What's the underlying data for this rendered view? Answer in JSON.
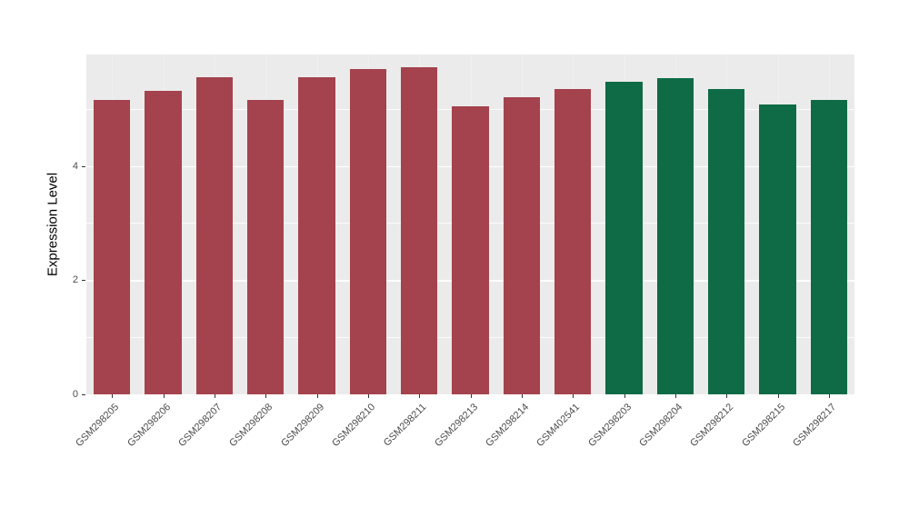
{
  "chart_data": {
    "type": "bar",
    "title": "",
    "xlabel": "",
    "ylabel": "Expression Level",
    "ylim": [
      0,
      5.95
    ],
    "yticks": [
      0,
      2,
      4
    ],
    "yticks_minor": [
      1,
      3,
      5
    ],
    "grid": true,
    "legend": "none",
    "categories": [
      "GSM298205",
      "GSM298206",
      "GSM298207",
      "GSM298208",
      "GSM298209",
      "GSM298210",
      "GSM298211",
      "GSM298213",
      "GSM298214",
      "GSM402541",
      "GSM298203",
      "GSM298204",
      "GSM298212",
      "GSM298215",
      "GSM298217"
    ],
    "values": [
      5.15,
      5.32,
      5.56,
      5.15,
      5.55,
      5.7,
      5.72,
      5.05,
      5.21,
      5.35,
      5.48,
      5.53,
      5.35,
      5.08,
      5.16
    ],
    "bar_groups": [
      0,
      0,
      0,
      0,
      0,
      0,
      0,
      0,
      0,
      0,
      1,
      1,
      1,
      1,
      1
    ],
    "group_colors": [
      "#A4424D",
      "#0E6B46"
    ],
    "panel_bg": "#EBEBEB",
    "grid_color": "#FFFFFF",
    "axis_text_color": "#4D4D4D",
    "axis_title_color": "#000000"
  }
}
